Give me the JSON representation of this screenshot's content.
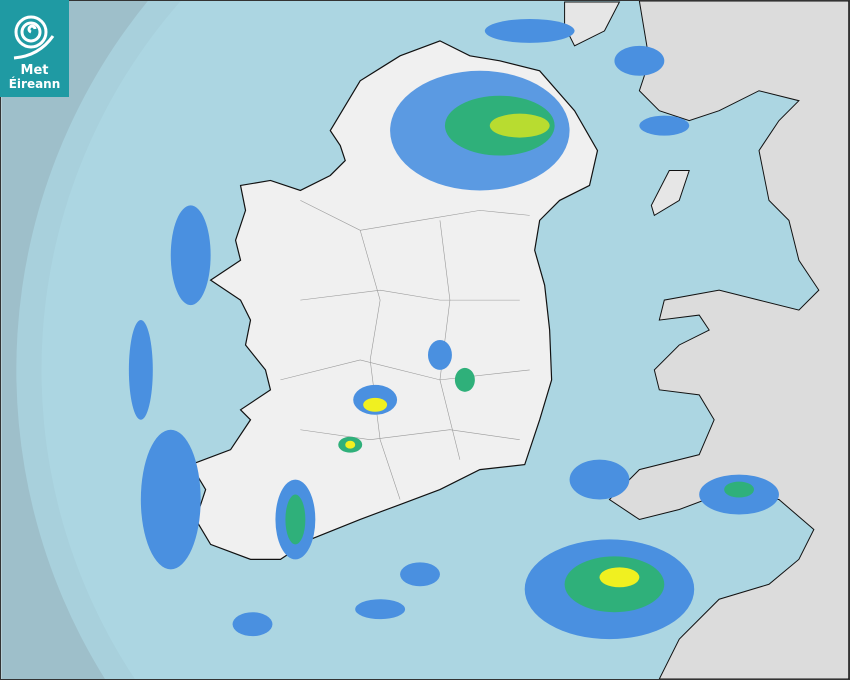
{
  "logo": {
    "line1": "Met",
    "line2": "Éireann",
    "icon": "swirl-icon"
  },
  "colors": {
    "outside_coverage": "#9ebfca",
    "radar_coverage": "#acd6e2",
    "sea": "#acd6e2",
    "land": "#f0f0f0",
    "uk_land": "#dcdcdc",
    "rain_light": "#4a90e0",
    "rain_moderate": "#2fb07a",
    "rain_heavy": "#b8dc30",
    "rain_very_heavy": "#f0f020",
    "logo_bg": "#1f9aa3"
  }
}
